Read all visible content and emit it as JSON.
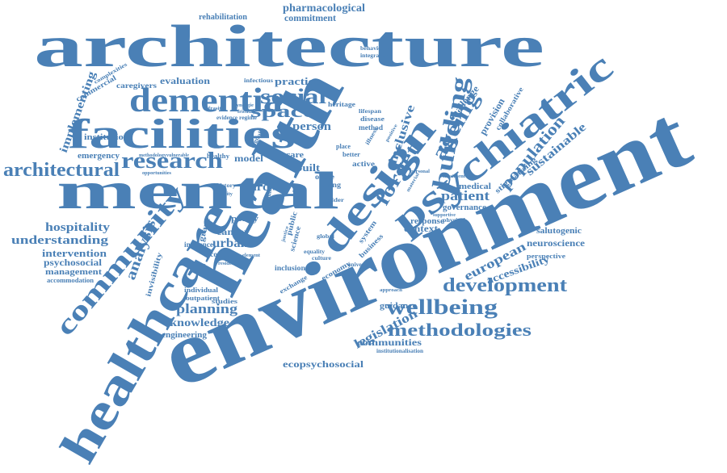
{
  "color": "#4a80b6",
  "words": [
    "architecture",
    "environment",
    "health",
    "mental",
    "facilities",
    "healthcare",
    "dementia",
    "psychiatric",
    "design",
    "community",
    "building",
    "social",
    "space",
    "research",
    "architectural",
    "development",
    "wellbeing",
    "methodologies",
    "ageing",
    "forget",
    "population",
    "inclusive",
    "patient",
    "sustainable",
    "implementing",
    "planning",
    "knowledge",
    "legislation",
    "european",
    "hospitality",
    "understanding",
    "analysis",
    "urban",
    "cancer",
    "ward",
    "person",
    "model",
    "intervention",
    "psychosocial",
    "management",
    "engineering",
    "ecopsychosocial",
    "communities",
    "guidance",
    "neuroscience",
    "salutogenic",
    "accessibility",
    "context",
    "response",
    "institution",
    "evaluation",
    "practice",
    "pharmacological",
    "commitment",
    "rehabilitation",
    "challenge",
    "provision",
    "collaborative",
    "stigmatising",
    "medical",
    "governance",
    "emergency",
    "caregivers",
    "commercial",
    "complexities",
    "perspective",
    "accommodation",
    "economic",
    "influence",
    "invisibility",
    "grant",
    "studies",
    "outpatient",
    "individual",
    "policy",
    "inclusion",
    "exchange",
    "economy",
    "business",
    "system",
    "science",
    "built",
    "office",
    "living",
    "active",
    "better",
    "place",
    "method",
    "disease",
    "heritage",
    "lifespan",
    "illness",
    "infectious",
    "behavioural",
    "integration",
    "institutionalisation",
    "healthy",
    "methodology",
    "opportunities",
    "vulnerable",
    "history",
    "quality",
    "digital",
    "humans",
    "care",
    "public",
    "global",
    "culture",
    "equality",
    "physical",
    "personal",
    "universal",
    "supportive",
    "evidence",
    "regime",
    "synergie",
    "friendly",
    "infrasit",
    "residential",
    "element",
    "justice",
    "area",
    "older",
    "material",
    "positive",
    "treatment",
    "approach"
  ]
}
